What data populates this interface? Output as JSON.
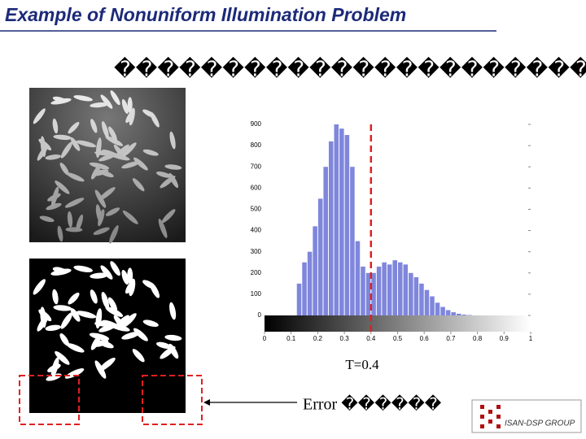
{
  "header": {
    "title": "Example of Nonuniform Illumination Problem"
  },
  "subtitle": "�������������������������",
  "histogram": {
    "type": "histogram",
    "bins": [
      0,
      0.02,
      0.04,
      0.06,
      0.08,
      0.1,
      0.12,
      0.14,
      0.16,
      0.18,
      0.2,
      0.22,
      0.24,
      0.26,
      0.28,
      0.3,
      0.32,
      0.34,
      0.36,
      0.38,
      0.4,
      0.42,
      0.44,
      0.46,
      0.48,
      0.5,
      0.52,
      0.54,
      0.56,
      0.58,
      0.6,
      0.62,
      0.64,
      0.66,
      0.68,
      0.7,
      0.72,
      0.74,
      0.76,
      0.78,
      0.8,
      0.82,
      0.84,
      0.86,
      0.88,
      0.9,
      0.92,
      0.94,
      0.96,
      0.98,
      1
    ],
    "counts": [
      0,
      0,
      0,
      0,
      0,
      0,
      150,
      250,
      300,
      420,
      550,
      700,
      820,
      900,
      880,
      850,
      700,
      350,
      230,
      200,
      200,
      230,
      250,
      240,
      260,
      250,
      240,
      200,
      180,
      150,
      120,
      90,
      60,
      40,
      25,
      15,
      8,
      4,
      2,
      0,
      0,
      0,
      0,
      0,
      0,
      0,
      0,
      0,
      0,
      0
    ],
    "color": "#7f86dc",
    "xlim": [
      0,
      1
    ],
    "ylim": [
      0,
      900
    ],
    "xticks": [
      0,
      0.1,
      0.2,
      0.3,
      0.4,
      0.5,
      0.6,
      0.7,
      0.8,
      0.9,
      1
    ],
    "yticks": [
      0,
      100,
      200,
      300,
      400,
      500,
      600,
      700,
      800,
      900
    ],
    "threshold": 0.4,
    "threshold_color": "#e02020"
  },
  "caption": "T=0.4",
  "error_label": "Error ������",
  "logo": "ISAN-DSP GROUP"
}
